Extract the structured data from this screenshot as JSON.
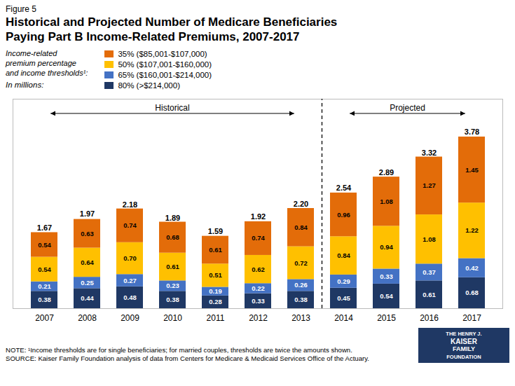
{
  "chart_data": {
    "type": "bar",
    "figure_label": "Figure 5",
    "title": "Historical and Projected Number of Medicare Beneficiaries\nPaying Part B Income-Related Premiums, 2007-2017",
    "categories": [
      "2007",
      "2008",
      "2009",
      "2010",
      "2011",
      "2012",
      "2013",
      "2014",
      "2015",
      "2016",
      "2017"
    ],
    "series": [
      {
        "name": "80% (>$214,000)",
        "color": "#1f3864",
        "values": [
          0.38,
          0.44,
          0.48,
          0.38,
          0.28,
          0.33,
          0.38,
          0.45,
          0.54,
          0.61,
          0.68
        ],
        "value_labels": [
          "0.38",
          "0.44",
          "0.48",
          "0.38",
          "0.28",
          "0.33",
          "0.38",
          "0.45",
          "0.54",
          "0.61",
          "0.68"
        ]
      },
      {
        "name": "65% ($160,001-$214,000)",
        "color": "#4472c4",
        "values": [
          0.21,
          0.25,
          0.27,
          0.23,
          0.19,
          0.22,
          0.26,
          0.29,
          0.33,
          0.37,
          0.42
        ],
        "value_labels": [
          "0.21",
          "0.25",
          "0.27",
          "0.23",
          "0.19",
          "0.22",
          "0.26",
          "0.29",
          "0.33",
          "0.37",
          "0.42"
        ]
      },
      {
        "name": "50% ($107,001-$160,000)",
        "color": "#ffc000",
        "values": [
          0.54,
          0.64,
          0.7,
          0.61,
          0.51,
          0.62,
          0.72,
          0.84,
          0.94,
          1.08,
          1.22
        ],
        "value_labels": [
          "0.54",
          "0.64",
          "0.70",
          "0.61",
          "0.51",
          "0.62",
          "0.72",
          "0.84",
          "0.94",
          "1.08",
          "1.22"
        ]
      },
      {
        "name": "35% ($85,001-$107,000)",
        "color": "#e36c09",
        "values": [
          0.54,
          0.63,
          0.74,
          0.68,
          0.61,
          0.74,
          0.84,
          0.96,
          1.08,
          1.27,
          1.45
        ],
        "value_labels": [
          "0.54",
          "0.63",
          "0.74",
          "0.68",
          "0.61",
          "0.74",
          "0.84",
          "0.96",
          "1.08",
          "1.27",
          "1.45"
        ]
      }
    ],
    "totals": [
      1.67,
      1.97,
      2.18,
      1.89,
      1.59,
      1.92,
      2.2,
      2.54,
      2.89,
      3.32,
      3.78
    ],
    "total_labels": [
      "1.67",
      "1.97",
      "2.18",
      "1.89",
      "1.59",
      "1.92",
      "2.20",
      "2.54",
      "2.89",
      "3.32",
      "3.78"
    ],
    "stacked": true,
    "data_labels": true,
    "ylim": [
      0,
      4.6
    ],
    "tick_labels": "x",
    "grid": false,
    "legend": "upper left",
    "legend_title": "Income-related\npremium percentage\nand income thresholds¹:",
    "unit_label": "In millions:",
    "annotations": [
      {
        "text": "Historical",
        "from": "2007",
        "to": "2013"
      },
      {
        "text": "Projected",
        "from": "2014",
        "to": "2017"
      }
    ],
    "divider": {
      "after": "2013",
      "line_style": "dashed"
    },
    "notes": [
      "NOTE: ¹Income thresholds are for single beneficiaries; for married couples, thresholds are twice the amounts shown.",
      "SOURCE: Kaiser Family Foundation analysis of data from Centers for Medicare & Medicaid Services Office of the Actuary."
    ],
    "logo": [
      "THE HENRY J.",
      "KAISER",
      "FAMILY",
      "FOUNDATION"
    ]
  }
}
